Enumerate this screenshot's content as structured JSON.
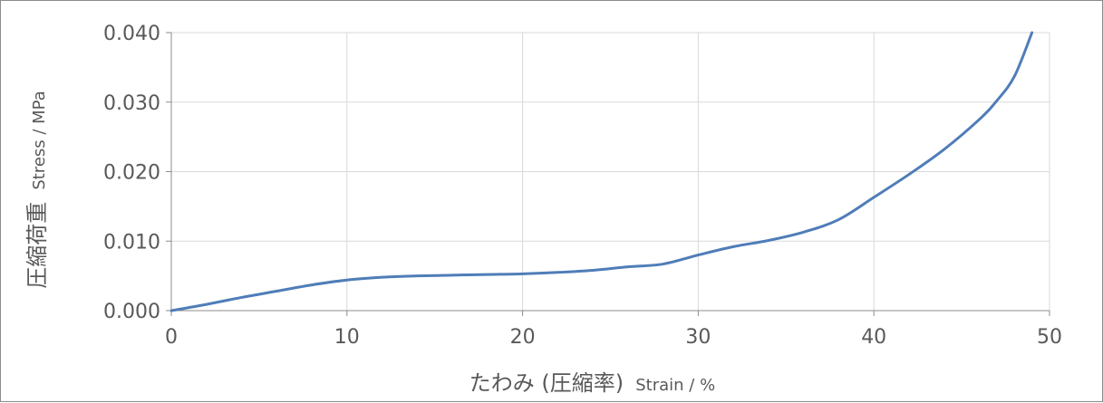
{
  "chart_data": {
    "type": "line",
    "xlabel": {
      "main": "たわみ (圧縮率)",
      "sub": "Strain / %"
    },
    "ylabel": {
      "main": "圧縮荷重",
      "sub": "Stress / MPa"
    },
    "xlim": [
      0,
      50
    ],
    "ylim": [
      0,
      0.04
    ],
    "xticks": [
      0,
      10,
      20,
      30,
      40,
      50
    ],
    "yticks": [
      0,
      0.01,
      0.02,
      0.03,
      0.04
    ],
    "xtick_labels": [
      "0",
      "10",
      "20",
      "30",
      "40",
      "50"
    ],
    "ytick_labels": [
      "0.000",
      "0.010",
      "0.020",
      "0.030",
      "0.040"
    ],
    "grid": true,
    "series": [
      {
        "color": "#4f7db8",
        "x": [
          0,
          2,
          4,
          6,
          8,
          10,
          12,
          14,
          16,
          18,
          20,
          22,
          24,
          26,
          28,
          30,
          32,
          34,
          36,
          38,
          40,
          42,
          44,
          46,
          47,
          48,
          49
        ],
        "y": [
          0,
          0.0009,
          0.0019,
          0.0028,
          0.0037,
          0.0044,
          0.0048,
          0.005,
          0.0051,
          0.0052,
          0.0053,
          0.0055,
          0.0058,
          0.0063,
          0.0067,
          0.008,
          0.0092,
          0.0101,
          0.0113,
          0.0131,
          0.0163,
          0.0196,
          0.0232,
          0.0275,
          0.0302,
          0.0337,
          0.04
        ]
      }
    ]
  }
}
